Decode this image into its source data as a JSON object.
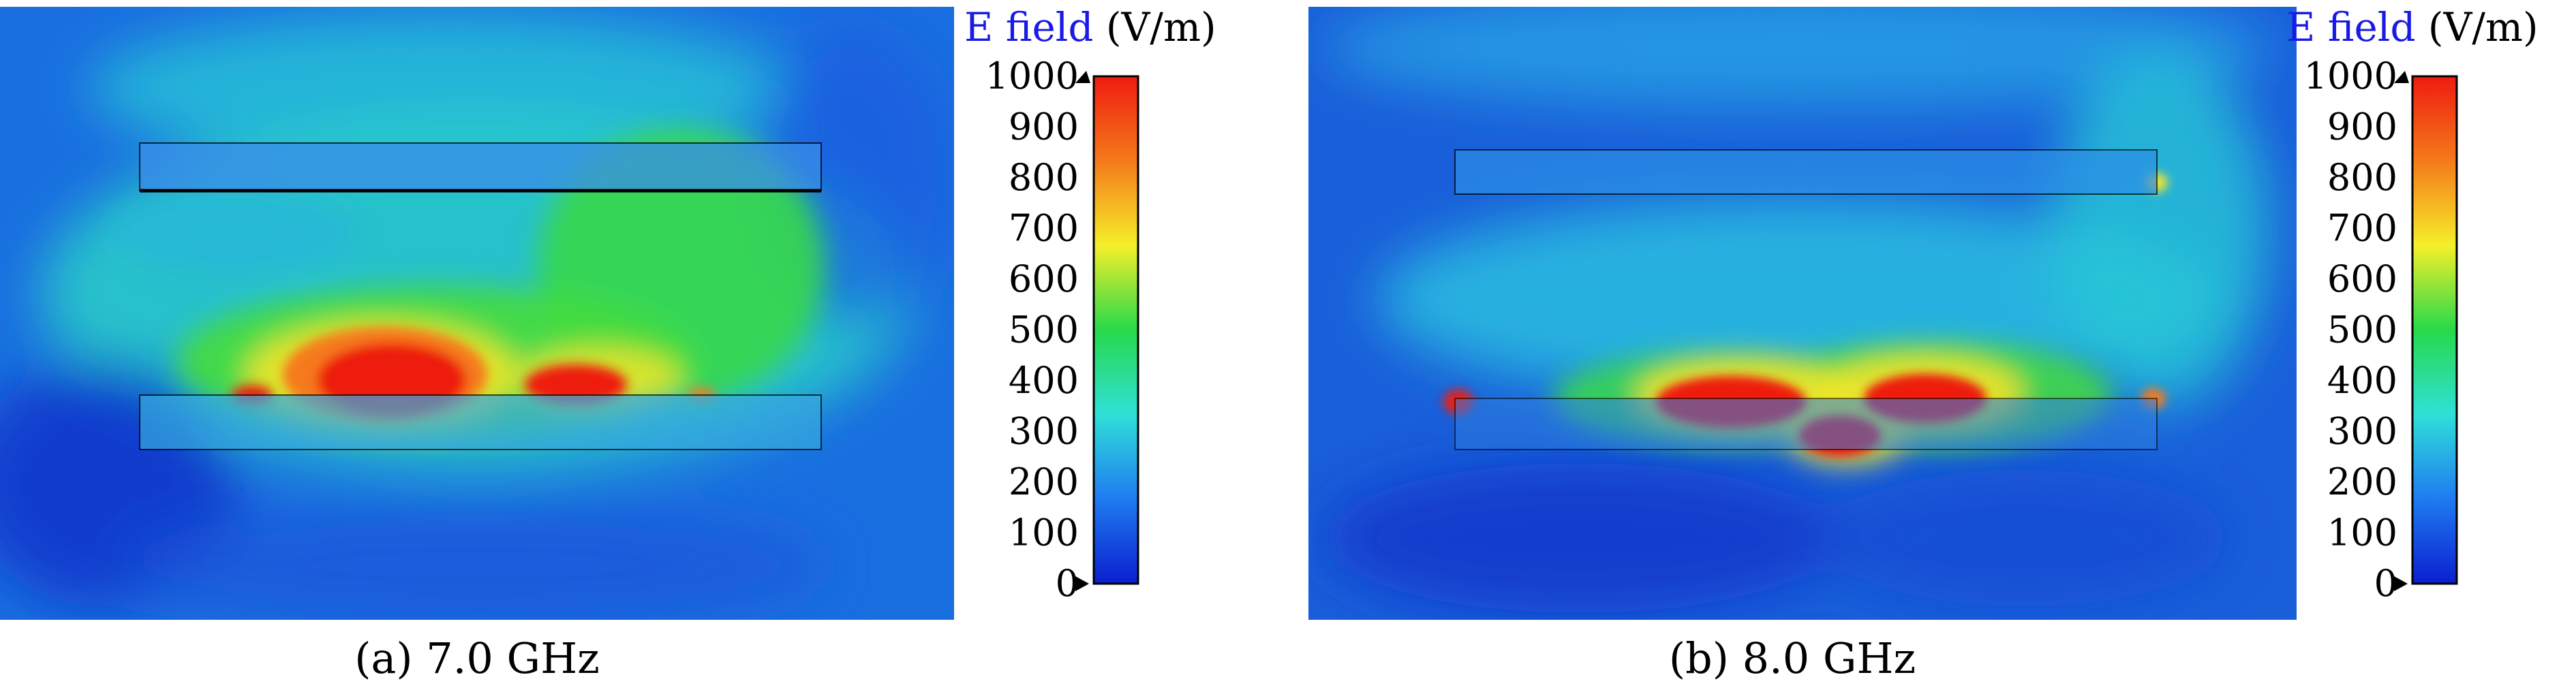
{
  "colors": {
    "scale": [
      "#0a1fcf",
      "#1f7bf0",
      "#2fe0d8",
      "#27d94a",
      "#f5ef2a",
      "#f57a1a",
      "#ee1b10"
    ],
    "background_field": "#1a7ae6",
    "title_accent": "#1a1ae6"
  },
  "panels": [
    {
      "caption": "(a) 7.0 GHz",
      "colorbar": {
        "title_prefix": "E field",
        "title_unit": "(V/m)",
        "min": 0,
        "max": 1000,
        "ticks": [
          "1000",
          "900",
          "800",
          "700",
          "600",
          "500",
          "400",
          "300",
          "200",
          "100",
          "0"
        ]
      }
    },
    {
      "caption": "(b) 8.0 GHz",
      "colorbar": {
        "title_prefix": "E field",
        "title_unit": "(V/m)",
        "min": 0,
        "max": 1000,
        "ticks": [
          "1000",
          "900",
          "800",
          "700",
          "600",
          "500",
          "400",
          "300",
          "200",
          "100",
          "0"
        ]
      }
    }
  ]
}
